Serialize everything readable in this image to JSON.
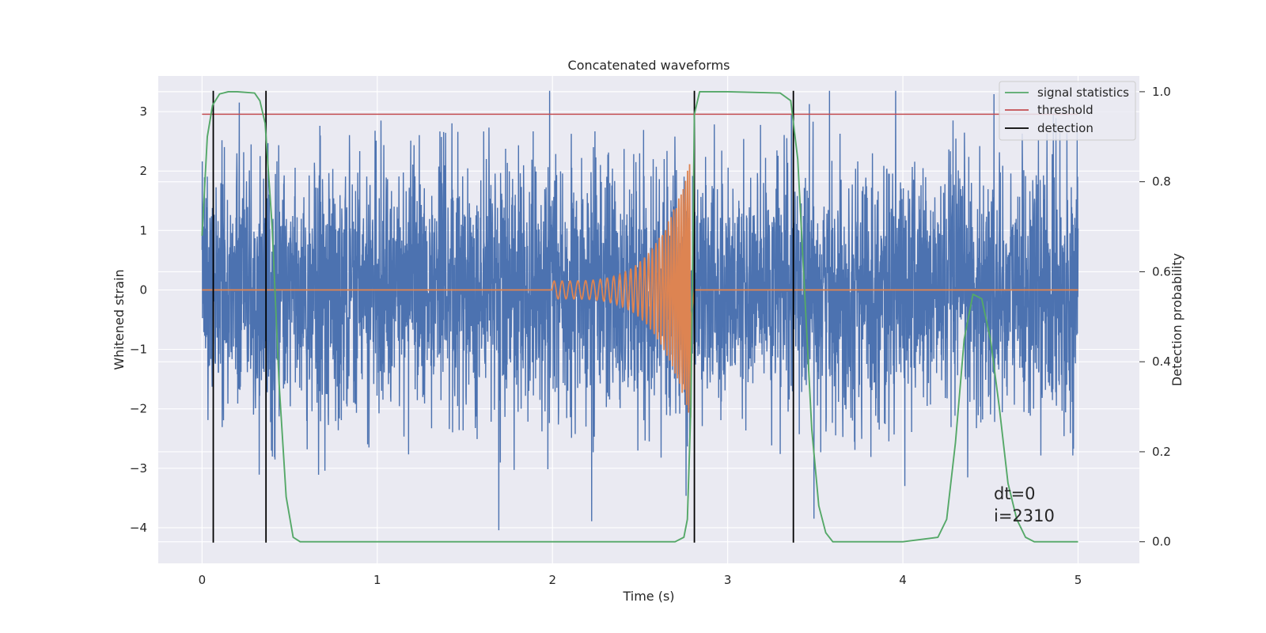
{
  "chart_data": {
    "type": "line",
    "title": "Concatenated waveforms",
    "xlabel": "Time (s)",
    "ylabel": "Whitened strain",
    "ylabel_right": "Detection probability",
    "xlim": [
      -0.25,
      5.35
    ],
    "ylim": [
      -4.6,
      3.6
    ],
    "ylim_right": [
      -0.048,
      1.035
    ],
    "xticks": [
      0,
      1,
      2,
      3,
      4,
      5
    ],
    "yticks": [
      -4,
      -3,
      -2,
      -1,
      0,
      1,
      2,
      3
    ],
    "yticks_right": [
      0.0,
      0.2,
      0.4,
      0.6,
      0.8,
      1.0
    ],
    "xtick_labels": [
      "0",
      "1",
      "2",
      "3",
      "4",
      "5"
    ],
    "ytick_labels": [
      "−4",
      "−3",
      "−2",
      "−1",
      "0",
      "1",
      "2",
      "3"
    ],
    "ytick_right_labels": [
      "0.0",
      "0.2",
      "0.4",
      "0.6",
      "0.8",
      "1.0"
    ],
    "grid": true,
    "legend_position": "top-right",
    "colors": {
      "background": "#eaeaf2",
      "grid": "#ffffff",
      "strain": "#4c72b0",
      "waveform": "#dd8452",
      "signal_statistics": "#55a868",
      "threshold": "#c44e52",
      "detection": "#000000"
    },
    "series": [
      {
        "name": "",
        "key": "strain",
        "axis": "left",
        "description": "whitened noisy strain, approx. ±1.2 std with peaks up to 3.4",
        "x_range": [
          0.0,
          5.0
        ]
      },
      {
        "name": "",
        "key": "waveform",
        "axis": "left",
        "chirp": {
          "start": 2.0,
          "merger": 2.79,
          "amplitude_start": 0.15,
          "amplitude_peak": 2.2,
          "f_start": 22,
          "f_peak": 90
        },
        "x_range": [
          0.0,
          5.0
        ]
      },
      {
        "name": "signal statistics",
        "key": "signal_statistics",
        "axis": "right",
        "x": [
          0.0,
          0.03,
          0.06,
          0.1,
          0.15,
          0.2,
          0.3,
          0.33,
          0.36,
          0.4,
          0.44,
          0.48,
          0.52,
          0.56,
          1.0,
          2.0,
          2.7,
          2.75,
          2.77,
          2.79,
          2.81,
          2.84,
          3.0,
          3.3,
          3.36,
          3.4,
          3.44,
          3.48,
          3.52,
          3.56,
          3.6,
          4.0,
          4.2,
          4.25,
          4.3,
          4.35,
          4.4,
          4.45,
          4.5,
          4.55,
          4.6,
          4.65,
          4.7,
          4.75,
          5.0
        ],
        "values": [
          0.68,
          0.9,
          0.97,
          0.995,
          1.0,
          1.0,
          0.997,
          0.98,
          0.93,
          0.7,
          0.35,
          0.1,
          0.01,
          0.0,
          0.0,
          0.0,
          0.0,
          0.01,
          0.05,
          0.3,
          0.95,
          1.0,
          1.0,
          0.997,
          0.98,
          0.85,
          0.55,
          0.25,
          0.08,
          0.02,
          0.0,
          0.0,
          0.01,
          0.05,
          0.22,
          0.45,
          0.55,
          0.54,
          0.45,
          0.3,
          0.13,
          0.05,
          0.01,
          0.0,
          0.0
        ]
      },
      {
        "name": "threshold",
        "key": "threshold",
        "axis": "right",
        "x": [
          0.0,
          5.0
        ],
        "values": [
          0.95,
          0.95
        ]
      },
      {
        "name": "detection",
        "key": "detection",
        "axis": "left",
        "type": "vlines",
        "x": [
          0.064,
          0.365,
          2.81,
          3.375
        ],
        "ymin": -4.25,
        "ymax": 3.35
      }
    ],
    "annotations": [
      "dt=0",
      "i=2310"
    ]
  }
}
